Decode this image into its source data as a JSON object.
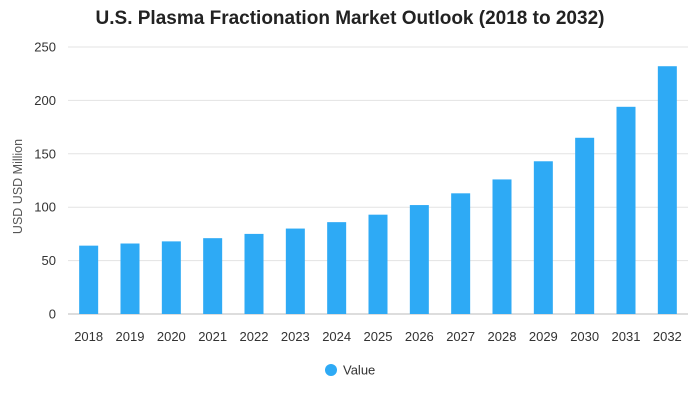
{
  "chart_data": {
    "type": "bar",
    "title": "U.S. Plasma Fractionation Market Outlook (2018 to 2032)",
    "xlabel": "",
    "ylabel": "USD USD Million",
    "categories": [
      "2018",
      "2019",
      "2020",
      "2021",
      "2022",
      "2023",
      "2024",
      "2025",
      "2026",
      "2027",
      "2028",
      "2029",
      "2030",
      "2031",
      "2032"
    ],
    "series": [
      {
        "name": "Value",
        "color": "#2eaaf5",
        "values": [
          64,
          66,
          68,
          71,
          75,
          80,
          86,
          93,
          102,
          113,
          126,
          143,
          165,
          194,
          232
        ]
      }
    ],
    "ylim": [
      0,
      250
    ],
    "yticks": [
      0,
      50,
      100,
      150,
      200,
      250
    ],
    "grid": true,
    "legend_position": "bottom"
  }
}
